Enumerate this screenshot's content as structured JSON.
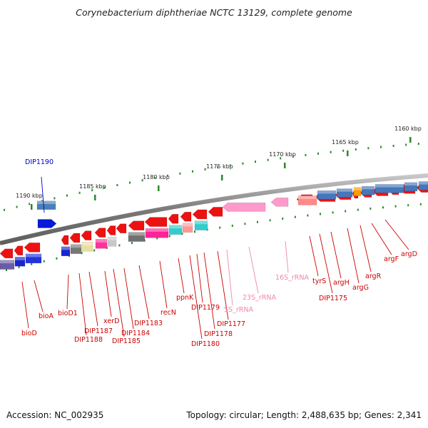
{
  "title": "Corynebacterium diphtheriae NCTC 13129, complete genome",
  "footer": {
    "accession": "Accession: NC_002935",
    "topology": "Topology: circular; Length: 2,488,635 bp; Genes: 2,341"
  },
  "colors": {
    "backbone": "#8c8c8c",
    "gene": "#ee1111",
    "rna": "#ff99cc",
    "cds_blue": "#4477bb",
    "label_default": "#cc0000",
    "label_rna": "#ee88aa",
    "label_special": "#0000cc",
    "tick": "#2a8a2a"
  },
  "ticks": [
    {
      "label": "1160 kbp"
    },
    {
      "label": "1165 kbp"
    },
    {
      "label": "1170 kbp"
    },
    {
      "label": "1175 kbp"
    },
    {
      "label": "1180 kbp"
    },
    {
      "label": "1185 kbp"
    },
    {
      "label": "1190 kbp"
    }
  ],
  "gene_labels": [
    {
      "name": "DIP1190",
      "type": "special"
    },
    {
      "name": "bioD",
      "type": "cds"
    },
    {
      "name": "bioA",
      "type": "cds"
    },
    {
      "name": "bioD1",
      "type": "cds"
    },
    {
      "name": "DIP1188",
      "type": "cds"
    },
    {
      "name": "DIP1187",
      "type": "cds"
    },
    {
      "name": "xerD",
      "type": "cds"
    },
    {
      "name": "DIP1185",
      "type": "cds"
    },
    {
      "name": "DIP1184",
      "type": "cds"
    },
    {
      "name": "DIP1183",
      "type": "cds"
    },
    {
      "name": "recN",
      "type": "cds"
    },
    {
      "name": "ppnK",
      "type": "cds"
    },
    {
      "name": "DIP1180",
      "type": "cds"
    },
    {
      "name": "DIP1179",
      "type": "cds"
    },
    {
      "name": "DIP1178",
      "type": "cds"
    },
    {
      "name": "DIP1177",
      "type": "cds"
    },
    {
      "name": "5S_rRNA",
      "type": "rna"
    },
    {
      "name": "23S_rRNA",
      "type": "rna"
    },
    {
      "name": "16S_rRNA",
      "type": "rna"
    },
    {
      "name": "tyrS",
      "type": "cds"
    },
    {
      "name": "DIP1175",
      "type": "cds"
    },
    {
      "name": "argH",
      "type": "cds"
    },
    {
      "name": "argG",
      "type": "cds"
    },
    {
      "name": "argR",
      "type": "cds"
    },
    {
      "name": "argF",
      "type": "cds"
    },
    {
      "name": "argD",
      "type": "cds"
    }
  ]
}
